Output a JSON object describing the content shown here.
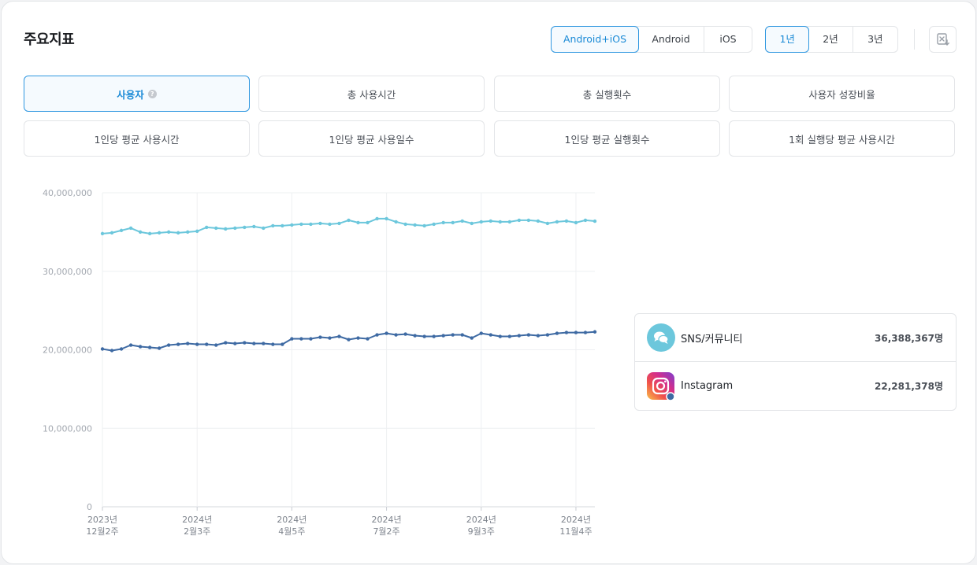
{
  "header": {
    "title": "주요지표",
    "os_options": [
      "Android+iOS",
      "Android",
      "iOS"
    ],
    "os_selected": 0,
    "year_options": [
      "1년",
      "2년",
      "3년"
    ],
    "year_selected": 0,
    "export_icon": "excel-download-icon"
  },
  "metrics": [
    {
      "label": "사용자",
      "active": true,
      "help": "?"
    },
    {
      "label": "총 사용시간",
      "active": false
    },
    {
      "label": "총 실행횟수",
      "active": false
    },
    {
      "label": "사용자 성장비율",
      "active": false
    },
    {
      "label": "1인당 평균 사용시간",
      "active": false
    },
    {
      "label": "1인당 평균 사용일수",
      "active": false
    },
    {
      "label": "1인당 평균 실행횟수",
      "active": false
    },
    {
      "label": "1회 실행당 평균 사용시간",
      "active": false
    }
  ],
  "legend": [
    {
      "name": "SNS/커뮤니티",
      "value": "36,388,367명",
      "color": "#6cc7dc",
      "icon": "chat-bubble-icon"
    },
    {
      "name": "Instagram",
      "value": "22,281,378명",
      "color": "#3e6aa3",
      "icon": "instagram-icon"
    }
  ],
  "chart_data": {
    "type": "line",
    "title": "",
    "xlabel": "",
    "ylabel": "",
    "ylim": [
      0,
      40000000
    ],
    "yticks": [
      0,
      10000000,
      20000000,
      30000000,
      40000000
    ],
    "ytick_labels": [
      "0",
      "10,000,000",
      "20,000,000",
      "30,000,000",
      "40,000,000"
    ],
    "xtick_labels": [
      {
        "index": 0,
        "line1": "2023년",
        "line2": "12월2주"
      },
      {
        "index": 10,
        "line1": "2024년",
        "line2": "2월3주"
      },
      {
        "index": 20,
        "line1": "2024년",
        "line2": "4월5주"
      },
      {
        "index": 30,
        "line1": "2024년",
        "line2": "7월2주"
      },
      {
        "index": 40,
        "line1": "2024년",
        "line2": "9월3주"
      },
      {
        "index": 50,
        "line1": "2024년",
        "line2": "11월4주"
      }
    ],
    "grid": true,
    "series": [
      {
        "name": "SNS/커뮤니티",
        "color": "#6cc7dc",
        "values": [
          34800000,
          34900000,
          35200000,
          35500000,
          35000000,
          34800000,
          34900000,
          35000000,
          34900000,
          35000000,
          35100000,
          35600000,
          35500000,
          35400000,
          35500000,
          35600000,
          35700000,
          35500000,
          35800000,
          35800000,
          35900000,
          36000000,
          36000000,
          36100000,
          36000000,
          36100000,
          36500000,
          36200000,
          36200000,
          36700000,
          36700000,
          36300000,
          36000000,
          35900000,
          35800000,
          36000000,
          36200000,
          36200000,
          36400000,
          36100000,
          36300000,
          36400000,
          36300000,
          36300000,
          36500000,
          36500000,
          36400000,
          36100000,
          36300000,
          36400000,
          36200000,
          36500000,
          36388367
        ]
      },
      {
        "name": "Instagram",
        "color": "#3e6aa3",
        "values": [
          20100000,
          19900000,
          20100000,
          20600000,
          20400000,
          20300000,
          20200000,
          20600000,
          20700000,
          20800000,
          20700000,
          20700000,
          20600000,
          20900000,
          20800000,
          20900000,
          20800000,
          20800000,
          20700000,
          20700000,
          21400000,
          21400000,
          21400000,
          21600000,
          21500000,
          21700000,
          21300000,
          21500000,
          21400000,
          21900000,
          22100000,
          21900000,
          22000000,
          21800000,
          21700000,
          21700000,
          21800000,
          21900000,
          21900000,
          21500000,
          22100000,
          21900000,
          21700000,
          21700000,
          21800000,
          21900000,
          21800000,
          21900000,
          22100000,
          22200000,
          22200000,
          22200000,
          22281378
        ]
      }
    ]
  }
}
